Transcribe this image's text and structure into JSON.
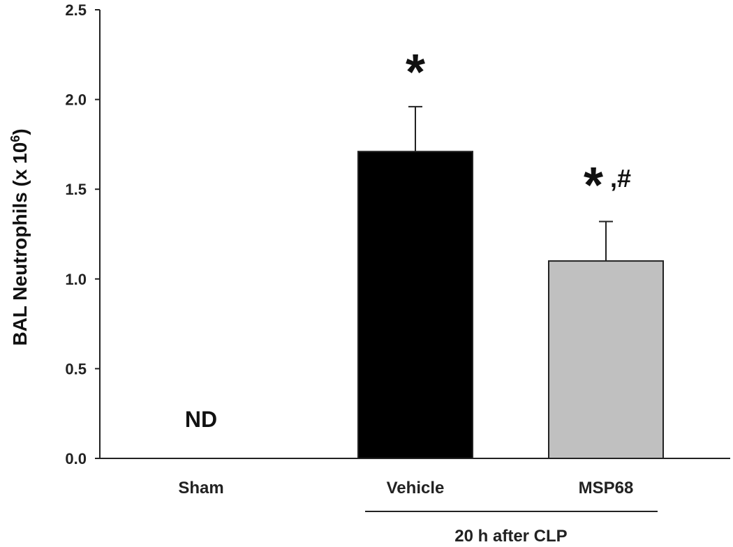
{
  "chart_data": {
    "type": "bar",
    "title": "",
    "ylabel": "BAL Neutrophils (x 10",
    "ylabel_superscript": "6",
    "ylabel_close": ")",
    "xlabel": "",
    "ylim": [
      0,
      2.5
    ],
    "y_ticks": [
      "0.0",
      "0.5",
      "1.0",
      "1.5",
      "2.0",
      "2.5"
    ],
    "y_tick_values": [
      0,
      0.5,
      1.0,
      1.5,
      2.0,
      2.5
    ],
    "categories": [
      "Sham",
      "Vehicle",
      "MSP68"
    ],
    "values": [
      0,
      1.71,
      1.1
    ],
    "errors": [
      0,
      0.25,
      0.22
    ],
    "bar_colors": [
      "#ffffff",
      "#000000",
      "#c0c0c0"
    ],
    "annotations": [
      "ND",
      "*",
      "*",
      ",#"
    ],
    "group_label": "20 h after CLP",
    "grid": false,
    "legend": "none"
  }
}
